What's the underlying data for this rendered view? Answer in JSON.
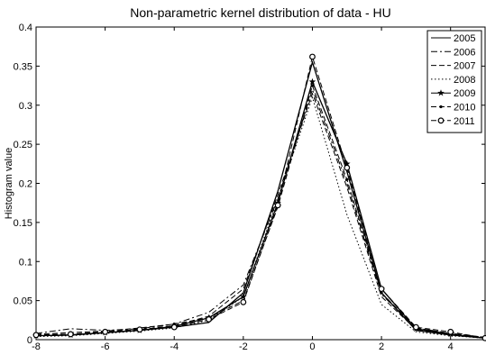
{
  "chart_data": {
    "type": "line",
    "title": "Non-parametric kernel distribution of data - HU",
    "xlabel": "",
    "ylabel": "Histogram value",
    "xlim": [
      -8,
      5
    ],
    "ylim": [
      0,
      0.4
    ],
    "xticks": [
      -8,
      -6,
      -4,
      -2,
      0,
      2,
      4
    ],
    "yticks": [
      0,
      0.05,
      0.1,
      0.15,
      0.2,
      0.25,
      0.3,
      0.35,
      0.4
    ],
    "grid": false,
    "legend_position": "top-right",
    "x": [
      -8,
      -7,
      -6,
      -5,
      -4,
      -3,
      -2,
      -1,
      0,
      1,
      2,
      3,
      4,
      5
    ],
    "series": [
      {
        "name": "2005",
        "style": "solid",
        "marker": "none",
        "values": [
          0.005,
          0.006,
          0.009,
          0.012,
          0.016,
          0.022,
          0.06,
          0.19,
          0.355,
          0.215,
          0.06,
          0.012,
          0.006,
          0.002
        ]
      },
      {
        "name": "2006",
        "style": "dashdot",
        "marker": "none",
        "values": [
          0.008,
          0.014,
          0.012,
          0.014,
          0.02,
          0.035,
          0.07,
          0.18,
          0.32,
          0.2,
          0.058,
          0.015,
          0.008,
          0.003
        ]
      },
      {
        "name": "2007",
        "style": "dashed",
        "marker": "none",
        "values": [
          0.006,
          0.007,
          0.01,
          0.013,
          0.018,
          0.03,
          0.065,
          0.185,
          0.315,
          0.195,
          0.055,
          0.013,
          0.007,
          0.002
        ]
      },
      {
        "name": "2008",
        "style": "dotted",
        "marker": "none",
        "values": [
          0.004,
          0.005,
          0.008,
          0.011,
          0.015,
          0.025,
          0.055,
          0.18,
          0.31,
          0.16,
          0.045,
          0.01,
          0.005,
          0.002
        ]
      },
      {
        "name": "2009",
        "style": "solid",
        "marker": "star",
        "values": [
          0.005,
          0.006,
          0.009,
          0.012,
          0.017,
          0.028,
          0.055,
          0.175,
          0.33,
          0.225,
          0.065,
          0.014,
          0.007,
          0.002
        ]
      },
      {
        "name": "2010",
        "style": "dashed",
        "marker": "point",
        "values": [
          0.007,
          0.009,
          0.011,
          0.015,
          0.02,
          0.028,
          0.05,
          0.17,
          0.325,
          0.205,
          0.06,
          0.015,
          0.008,
          0.003
        ]
      },
      {
        "name": "2011",
        "style": "dashed",
        "marker": "circle",
        "values": [
          0.006,
          0.007,
          0.01,
          0.013,
          0.016,
          0.026,
          0.048,
          0.172,
          0.362,
          0.22,
          0.065,
          0.016,
          0.01,
          0.002
        ]
      }
    ]
  }
}
